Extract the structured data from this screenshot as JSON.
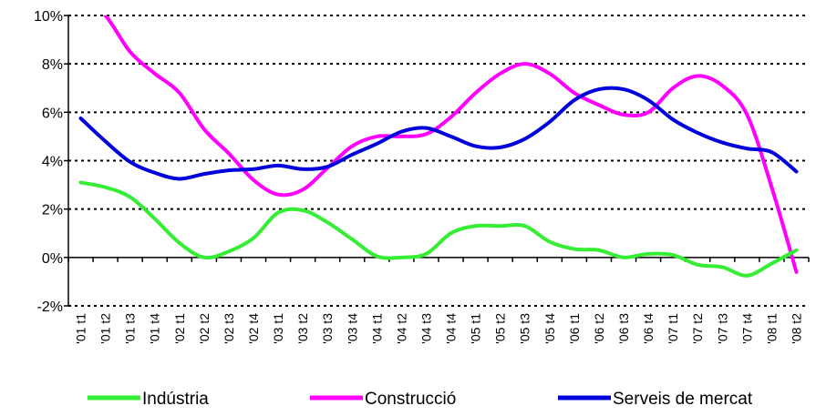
{
  "chart_data": {
    "type": "line",
    "title": "",
    "xlabel": "",
    "ylabel": "",
    "categories": [
      "'01 t1",
      "'01 t2",
      "'01 t3",
      "'01 t4",
      "'02 t1",
      "'02 t2",
      "'02 t3",
      "'02 t4",
      "'03 t1",
      "'03 t2",
      "'03 t3",
      "'03 t4",
      "'04 t1",
      "'04 t2",
      "'04 t3",
      "'04 t4",
      "'05 t1",
      "'05 t2",
      "'05 t3",
      "'05 t4",
      "'06 t1",
      "'06 t2",
      "'06 t3",
      "'06 t4",
      "'07 t1",
      "'07 t2",
      "'07 t3",
      "'07 t4",
      "'08 t1",
      "'08 t2"
    ],
    "ylim": [
      -2,
      10
    ],
    "yticks": [
      -2,
      0,
      2,
      4,
      6,
      8,
      10
    ],
    "ytick_labels": [
      "-2%",
      "0%",
      "2%",
      "4%",
      "6%",
      "8%",
      "10%"
    ],
    "grid": "horizontal dotted",
    "legend_position": "bottom",
    "series": [
      {
        "name": "Indústria",
        "color": "#33ee33",
        "values": [
          3.1,
          2.9,
          2.5,
          1.6,
          0.6,
          0.0,
          0.25,
          0.8,
          1.85,
          1.95,
          1.45,
          0.75,
          0.05,
          0.0,
          0.15,
          1.0,
          1.3,
          1.3,
          1.3,
          0.65,
          0.35,
          0.3,
          0.0,
          0.15,
          0.1,
          -0.3,
          -0.4,
          -0.75,
          -0.25,
          0.3
        ]
      },
      {
        "name": "Construcció",
        "color": "#ff00ff",
        "values": [
          10.8,
          10.0,
          8.5,
          7.6,
          6.8,
          5.3,
          4.3,
          3.2,
          2.6,
          2.8,
          3.7,
          4.6,
          5.0,
          5.0,
          5.1,
          5.8,
          6.8,
          7.6,
          8.0,
          7.6,
          6.8,
          6.3,
          5.9,
          6.0,
          7.0,
          7.5,
          7.1,
          5.9,
          2.9,
          -0.6
        ]
      },
      {
        "name": "Serveis de mercat",
        "color": "#0000dd",
        "values": [
          5.75,
          4.8,
          3.95,
          3.5,
          3.25,
          3.45,
          3.6,
          3.65,
          3.8,
          3.65,
          3.75,
          4.25,
          4.7,
          5.2,
          5.35,
          5.0,
          4.6,
          4.55,
          4.9,
          5.6,
          6.5,
          6.95,
          6.95,
          6.5,
          5.7,
          5.15,
          4.75,
          4.5,
          4.35,
          3.55
        ]
      }
    ]
  }
}
